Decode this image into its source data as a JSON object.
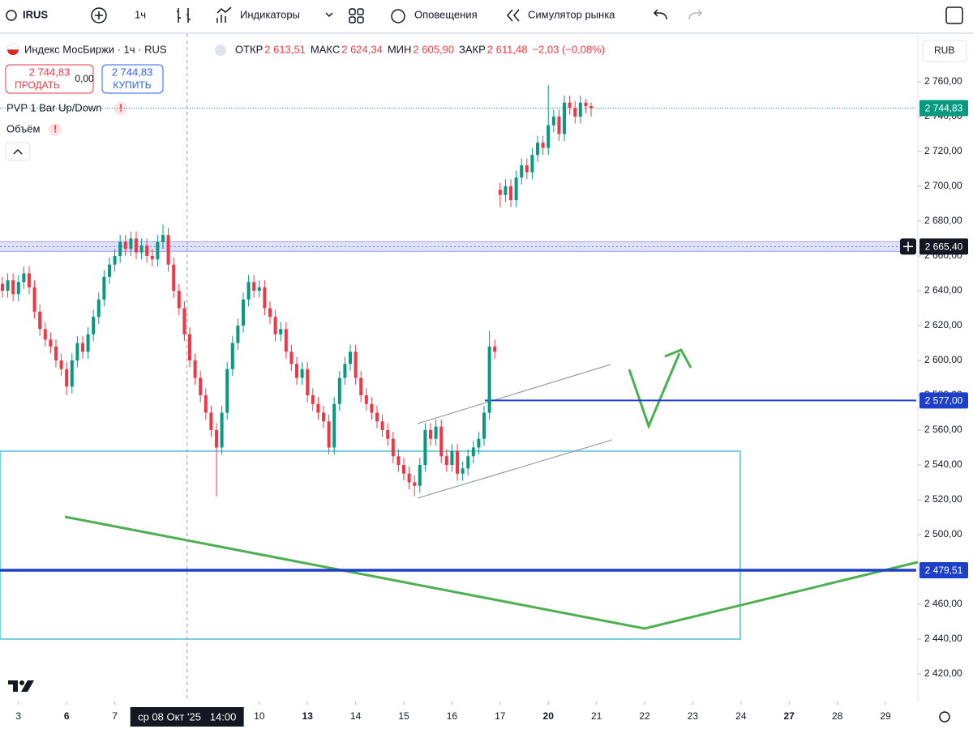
{
  "toolbar": {
    "symbol": "IRUS",
    "interval": "1ч",
    "indicators": "Индикаторы",
    "alerts": "Оповещения",
    "simulator": "Симулятор рынка"
  },
  "legend": {
    "title": "Индекс МосБиржи · 1ч · RUS",
    "fields": [
      {
        "label": "ОТКР",
        "value": "2 613,51"
      },
      {
        "label": "МАКС",
        "value": "2 624,34"
      },
      {
        "label": "МИН",
        "value": "2 605,90"
      },
      {
        "label": "ЗАКР",
        "value": "2 611,48"
      }
    ],
    "change": "−2,03 (−0,08%)"
  },
  "trade": {
    "sell_price": "2 744,83",
    "sell": "ПРОДАТЬ",
    "spread": "0,00",
    "buy_price": "2 744,83",
    "buy": "КУПИТЬ"
  },
  "studies": [
    "PVP 1 Bar Up/Down",
    "Объём"
  ],
  "currency": "RUB",
  "crosshair": {
    "value": 34.5,
    "label": "ср 08 Окт '25   14:00"
  },
  "chart_data": {
    "type": "candlestick",
    "up_color": "#089981",
    "down_color": "#f23645",
    "grid": false,
    "xlim": [
      -0.45,
      170.75
    ],
    "ylim": [
      2404.2,
      2787.4
    ],
    "xticks": [
      {
        "value": 3,
        "label": "3"
      },
      {
        "value": 12,
        "label": "6"
      },
      {
        "value": 21,
        "label": "7"
      },
      {
        "value": 48,
        "label": "10"
      },
      {
        "value": 57,
        "label": "13"
      },
      {
        "value": 66,
        "label": "14"
      },
      {
        "value": 75,
        "label": "15"
      },
      {
        "value": 84,
        "label": "16"
      },
      {
        "value": 93,
        "label": "17"
      },
      {
        "value": 102,
        "label": "20"
      },
      {
        "value": 111,
        "label": "21"
      },
      {
        "value": 120,
        "label": "22"
      },
      {
        "value": 129,
        "label": "23"
      },
      {
        "value": 138,
        "label": "24"
      },
      {
        "value": 147,
        "label": "27"
      },
      {
        "value": 156,
        "label": "28"
      },
      {
        "value": 165,
        "label": "29"
      }
    ],
    "yticks": [
      {
        "value": 2420,
        "label": "2 420,00"
      },
      {
        "value": 2440,
        "label": "2 440,00"
      },
      {
        "value": 2460,
        "label": "2 460,00"
      },
      {
        "value": 2480,
        "label": "2 480,00"
      },
      {
        "value": 2500,
        "label": "2 500,00"
      },
      {
        "value": 2520,
        "label": "2 520,00"
      },
      {
        "value": 2540,
        "label": "2 540,00"
      },
      {
        "value": 2560,
        "label": "2 560,00"
      },
      {
        "value": 2580,
        "label": "2 580,00"
      },
      {
        "value": 2600,
        "label": "2 600,00"
      },
      {
        "value": 2620,
        "label": "2 620,00"
      },
      {
        "value": 2640,
        "label": "2 640,00"
      },
      {
        "value": 2660,
        "label": "2 660,00"
      },
      {
        "value": 2680,
        "label": "2 680,00"
      },
      {
        "value": 2700,
        "label": "2 700,00"
      },
      {
        "value": 2720,
        "label": "2 720,00"
      },
      {
        "value": 2740,
        "label": "2 740,00"
      },
      {
        "value": 2760,
        "label": "2 760,00"
      }
    ],
    "price_lines": [
      {
        "value": 2744.83,
        "label": "2 744,83",
        "color": "#089981"
      },
      {
        "value": 2665.4,
        "label": "2 665,40",
        "color": "#131722"
      },
      {
        "value": 2577,
        "label": "2 577,00",
        "color": "#1e40c8"
      },
      {
        "value": 2479.51,
        "label": "2 479,51",
        "color": "#1e40c8"
      }
    ],
    "ohlc": [
      [
        2644,
        2648,
        2636,
        2640
      ],
      [
        2640,
        2650,
        2636,
        2646
      ],
      [
        2646,
        2650,
        2634,
        2638
      ],
      [
        2638,
        2649,
        2634,
        2645
      ],
      [
        2645,
        2654,
        2641,
        2650
      ],
      [
        2650,
        2654,
        2638,
        2642
      ],
      [
        2642,
        2646,
        2624,
        2628
      ],
      [
        2628,
        2632,
        2614,
        2618
      ],
      [
        2618,
        2622,
        2608,
        2612
      ],
      [
        2612,
        2616,
        2604,
        2608
      ],
      [
        2608,
        2612,
        2596,
        2600
      ],
      [
        2600,
        2604,
        2591,
        2595
      ],
      [
        2595,
        2599,
        2580,
        2585
      ],
      [
        2585,
        2604,
        2581,
        2600
      ],
      [
        2600,
        2614,
        2596,
        2610
      ],
      [
        2610,
        2614,
        2601,
        2605
      ],
      [
        2605,
        2619,
        2601,
        2615
      ],
      [
        2615,
        2629,
        2611,
        2625
      ],
      [
        2625,
        2639,
        2621,
        2635
      ],
      [
        2635,
        2652,
        2631,
        2648
      ],
      [
        2648,
        2659,
        2644,
        2655
      ],
      [
        2655,
        2664,
        2651,
        2660
      ],
      [
        2660,
        2672,
        2656,
        2668
      ],
      [
        2668,
        2672,
        2660,
        2664
      ],
      [
        2664,
        2674,
        2660,
        2670
      ],
      [
        2670,
        2674,
        2658,
        2662
      ],
      [
        2662,
        2670,
        2658,
        2666
      ],
      [
        2666,
        2670,
        2656,
        2660
      ],
      [
        2660,
        2664,
        2654,
        2658
      ],
      [
        2658,
        2672,
        2654,
        2668
      ],
      [
        2668,
        2678,
        2664,
        2672
      ],
      [
        2672,
        2676,
        2651,
        2655
      ],
      [
        2655,
        2659,
        2636,
        2640
      ],
      [
        2640,
        2644,
        2626,
        2630
      ],
      [
        2630,
        2634,
        2611,
        2615
      ],
      [
        2615,
        2619,
        2596,
        2600
      ],
      [
        2600,
        2604,
        2586,
        2590
      ],
      [
        2590,
        2594,
        2576,
        2580
      ],
      [
        2580,
        2584,
        2566,
        2570
      ],
      [
        2570,
        2574,
        2556,
        2560
      ],
      [
        2560,
        2564,
        2522,
        2550
      ],
      [
        2550,
        2574,
        2546,
        2570
      ],
      [
        2570,
        2599,
        2566,
        2595
      ],
      [
        2595,
        2614,
        2591,
        2610
      ],
      [
        2610,
        2624,
        2606,
        2620
      ],
      [
        2620,
        2639,
        2616,
        2635
      ],
      [
        2635,
        2649,
        2631,
        2645
      ],
      [
        2645,
        2649,
        2636,
        2640
      ],
      [
        2640,
        2646,
        2636,
        2642
      ],
      [
        2642,
        2646,
        2626,
        2630
      ],
      [
        2630,
        2634,
        2621,
        2625
      ],
      [
        2625,
        2629,
        2611,
        2615
      ],
      [
        2615,
        2622,
        2611,
        2618
      ],
      [
        2618,
        2622,
        2601,
        2605
      ],
      [
        2605,
        2609,
        2594,
        2598
      ],
      [
        2598,
        2602,
        2586,
        2590
      ],
      [
        2590,
        2599,
        2586,
        2595
      ],
      [
        2595,
        2599,
        2576,
        2580
      ],
      [
        2580,
        2584,
        2571,
        2575
      ],
      [
        2575,
        2579,
        2566,
        2570
      ],
      [
        2570,
        2574,
        2561,
        2565
      ],
      [
        2565,
        2569,
        2546,
        2550
      ],
      [
        2550,
        2579,
        2546,
        2575
      ],
      [
        2575,
        2594,
        2571,
        2590
      ],
      [
        2590,
        2602,
        2586,
        2598
      ],
      [
        2598,
        2609,
        2594,
        2605
      ],
      [
        2605,
        2609,
        2586,
        2590
      ],
      [
        2590,
        2594,
        2576,
        2580
      ],
      [
        2580,
        2584,
        2571,
        2575
      ],
      [
        2575,
        2579,
        2566,
        2570
      ],
      [
        2570,
        2574,
        2561,
        2565
      ],
      [
        2565,
        2569,
        2556,
        2560
      ],
      [
        2560,
        2564,
        2551,
        2555
      ],
      [
        2555,
        2559,
        2541,
        2545
      ],
      [
        2545,
        2549,
        2536,
        2540
      ],
      [
        2540,
        2544,
        2531,
        2535
      ],
      [
        2535,
        2539,
        2526,
        2530
      ],
      [
        2530,
        2534,
        2522,
        2528
      ],
      [
        2528,
        2544,
        2524,
        2540
      ],
      [
        2540,
        2564,
        2536,
        2560
      ],
      [
        2560,
        2564,
        2551,
        2555
      ],
      [
        2555,
        2566,
        2551,
        2562
      ],
      [
        2562,
        2566,
        2541,
        2545
      ],
      [
        2545,
        2549,
        2536,
        2540
      ],
      [
        2540,
        2552,
        2536,
        2548
      ],
      [
        2548,
        2552,
        2531,
        2535
      ],
      [
        2535,
        2542,
        2531,
        2538
      ],
      [
        2538,
        2549,
        2534,
        2545
      ],
      [
        2545,
        2554,
        2541,
        2550
      ],
      [
        2550,
        2559,
        2546,
        2555
      ],
      [
        2555,
        2574,
        2551,
        2570
      ],
      [
        2570,
        2617,
        2566,
        2608
      ],
      [
        2608,
        2612,
        2601,
        2605
      ],
      [
        2698,
        2702,
        2688,
        2695
      ],
      [
        2695,
        2704,
        2691,
        2700
      ],
      [
        2700,
        2704,
        2688,
        2692
      ],
      [
        2692,
        2709,
        2688,
        2705
      ],
      [
        2705,
        2716,
        2701,
        2712
      ],
      [
        2712,
        2716,
        2704,
        2708
      ],
      [
        2708,
        2722,
        2704,
        2718
      ],
      [
        2718,
        2729,
        2714,
        2725
      ],
      [
        2725,
        2729,
        2718,
        2722
      ],
      [
        2722,
        2758,
        2718,
        2735
      ],
      [
        2735,
        2744,
        2731,
        2740
      ],
      [
        2740,
        2744,
        2726,
        2730
      ],
      [
        2730,
        2752,
        2726,
        2748
      ],
      [
        2748,
        2752,
        2741,
        2745
      ],
      [
        2745,
        2749,
        2736,
        2740
      ],
      [
        2740,
        2752,
        2736,
        2748
      ],
      [
        2748,
        2750,
        2742,
        2746
      ],
      [
        2746,
        2748,
        2740,
        2744.83
      ]
    ]
  }
}
